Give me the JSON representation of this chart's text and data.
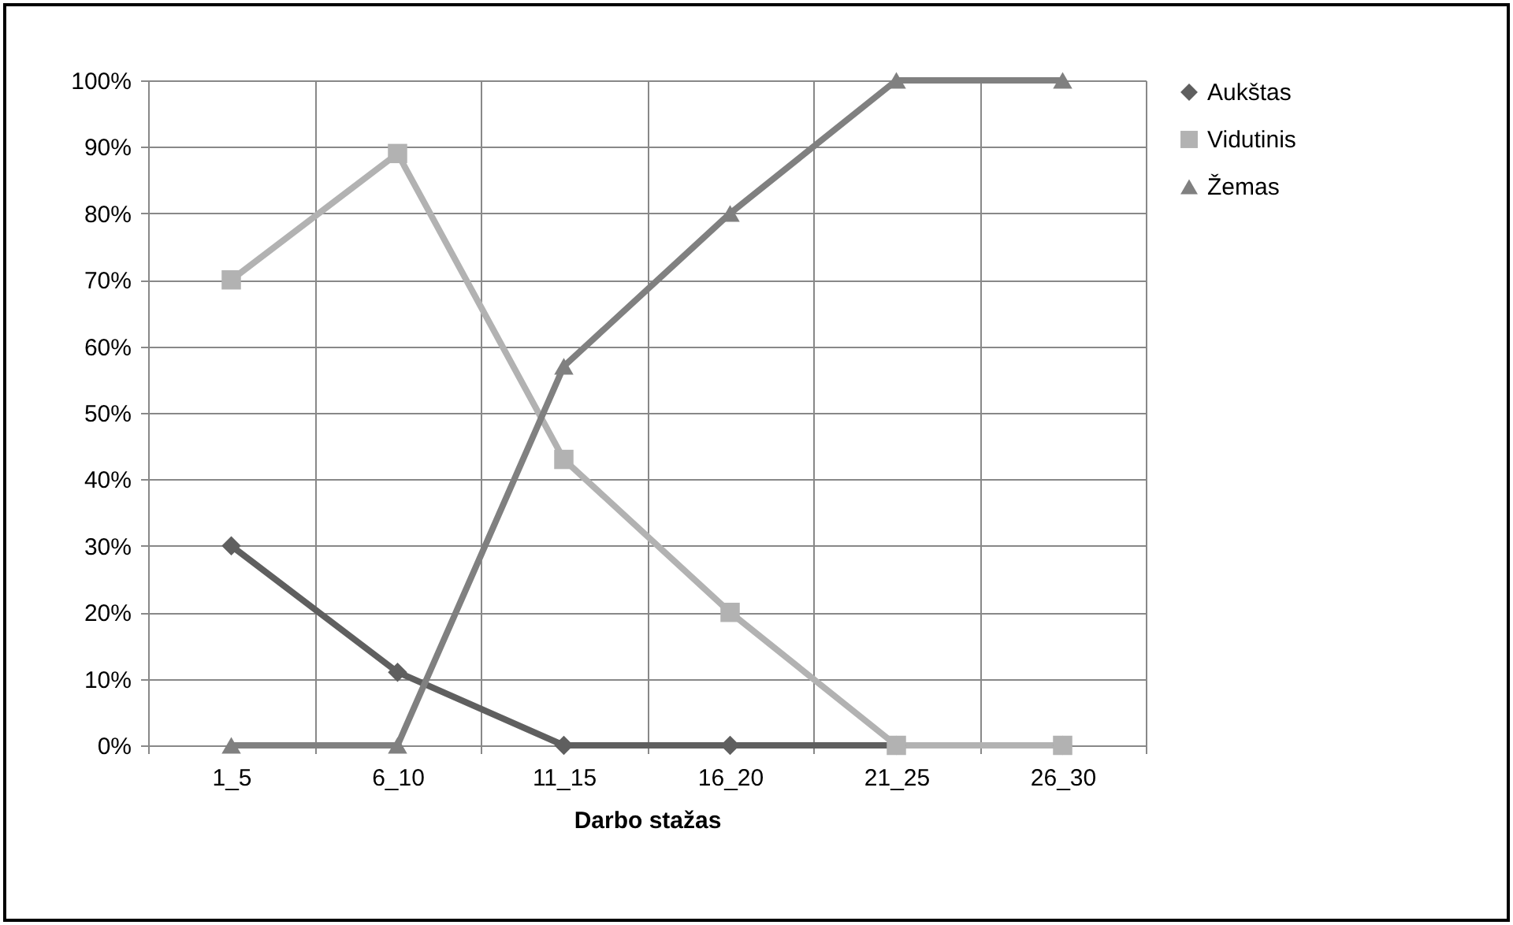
{
  "chart_data": {
    "type": "line",
    "xlabel": "Darbo stažas",
    "categories": [
      "1_5",
      "6_10",
      "11_15",
      "16_20",
      "21_25",
      "26_30"
    ],
    "series": [
      {
        "name": "Aukštas",
        "color": "#5f5f5f",
        "marker": "diamond",
        "values": [
          30,
          11,
          0,
          0,
          0,
          0
        ]
      },
      {
        "name": "Vidutinis",
        "color": "#b2b2b2",
        "marker": "square",
        "values": [
          70,
          89,
          43,
          20,
          0,
          0
        ]
      },
      {
        "name": "Žemas",
        "color": "#808080",
        "marker": "triangle",
        "values": [
          0,
          0,
          57,
          80,
          100,
          100
        ]
      }
    ],
    "ylim": [
      0,
      100
    ],
    "yticks": [
      {
        "value": 0,
        "label": "0%"
      },
      {
        "value": 10,
        "label": "10%"
      },
      {
        "value": 20,
        "label": "20%"
      },
      {
        "value": 30,
        "label": "30%"
      },
      {
        "value": 40,
        "label": "40%"
      },
      {
        "value": 50,
        "label": "50%"
      },
      {
        "value": 60,
        "label": "60%"
      },
      {
        "value": 70,
        "label": "70%"
      },
      {
        "value": 80,
        "label": "80%"
      },
      {
        "value": 90,
        "label": "90%"
      },
      {
        "value": 100,
        "label": "100%"
      }
    ],
    "grid": true,
    "legend": "right",
    "line_style": "solid"
  }
}
